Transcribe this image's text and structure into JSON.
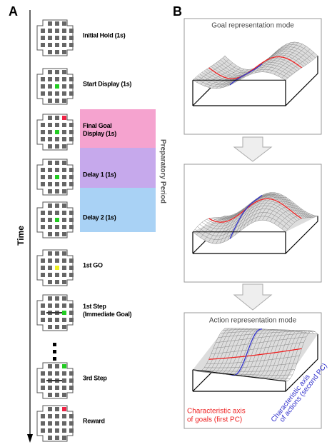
{
  "panel_a": {
    "label": "A",
    "axis_label": "Time",
    "period_label": "Preparatory Period",
    "steps": [
      {
        "lines": [
          "Initial Hold (1s)"
        ]
      },
      {
        "lines": [
          "Start Display (1s)"
        ]
      },
      {
        "lines": [
          "Final Goal",
          "Display (1s)"
        ]
      },
      {
        "lines": [
          "Delay 1 (1s)"
        ]
      },
      {
        "lines": [
          "Delay 2 (1s)"
        ]
      },
      {
        "lines": [
          "1st GO"
        ]
      },
      {
        "lines": [
          "1st Step",
          "(Immediate Goal)"
        ]
      },
      {
        "lines": [
          "3rd Step"
        ]
      },
      {
        "lines": [
          "Reward"
        ]
      }
    ]
  },
  "panel_b": {
    "label": "B",
    "top_title": "Goal representation mode",
    "bottom_title": "Action representation mode",
    "goal_axis_lines": [
      "Characteristic axis",
      "of goals (first PC)"
    ],
    "action_axis_lines": [
      "Characteristic axis",
      "of actions (second PC)"
    ]
  }
}
